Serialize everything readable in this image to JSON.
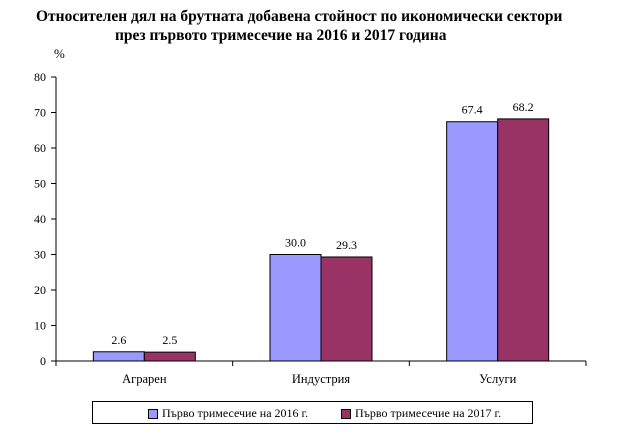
{
  "header": {
    "title_line1": "Относителен дял на брутната добавена стойност по икономически сектори",
    "title_line2": "през първото тримесечие на 2016 и 2017 година",
    "unit": "%"
  },
  "colors": {
    "series1": "#9999ff",
    "series2": "#993366"
  },
  "chart_data": {
    "type": "bar",
    "title": "Относителен дял на брутната добавена стойност по икономически сектори през първото тримесечие на 2016 и 2017 година",
    "ylabel": "%",
    "categories": [
      "Аграрен",
      "Индустрия",
      "Услуги"
    ],
    "series": [
      {
        "name": "Първо тримесечие на 2016 г.",
        "values": [
          2.6,
          30.0,
          67.4
        ],
        "labels": [
          "2.6",
          "30.0",
          "67.4"
        ]
      },
      {
        "name": "Първо тримесечие на 2017 г.",
        "values": [
          2.5,
          29.3,
          68.2
        ],
        "labels": [
          "2.5",
          "29.3",
          "68.2"
        ]
      }
    ],
    "ylim": [
      0,
      80
    ],
    "yticks": [
      0,
      10,
      20,
      30,
      40,
      50,
      60,
      70,
      80
    ],
    "grid": false,
    "legend": "bottom"
  }
}
